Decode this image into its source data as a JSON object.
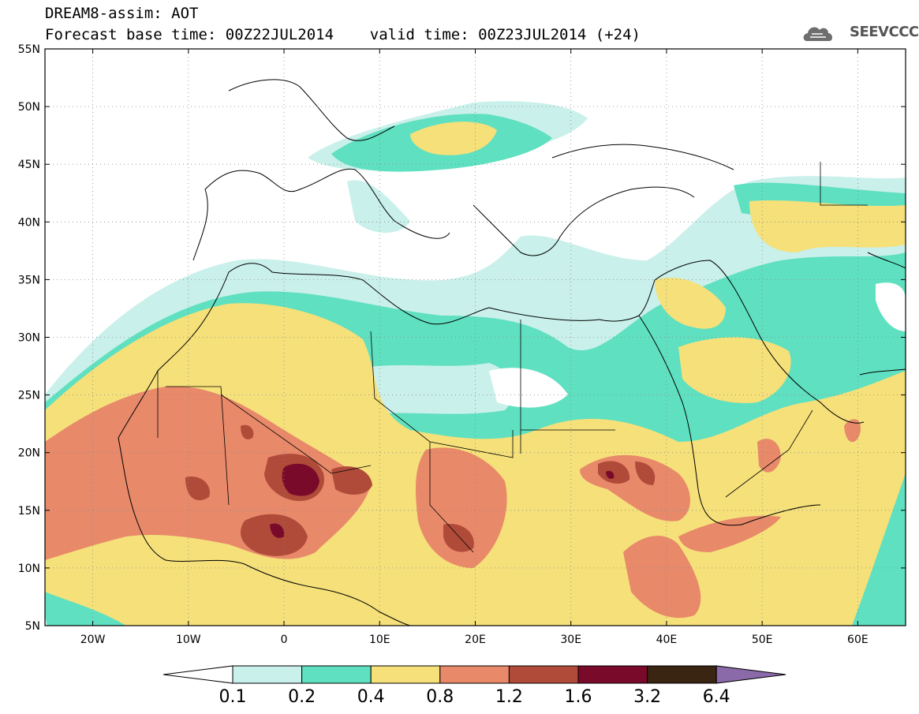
{
  "header": {
    "line1": "DREAM8-assim: AOT",
    "line2": "Forecast base time: 00Z22JUL2014    valid time: 00Z23JUL2014 (+24)"
  },
  "logo": {
    "text": "SEEVCCC",
    "icon": "cloud-logo-icon"
  },
  "map": {
    "lon_range": [
      -25,
      65
    ],
    "lat_range": [
      5,
      55
    ],
    "lat_ticks": [
      {
        "value": 55,
        "label": "55N"
      },
      {
        "value": 50,
        "label": "50N"
      },
      {
        "value": 45,
        "label": "45N"
      },
      {
        "value": 40,
        "label": "40N"
      },
      {
        "value": 35,
        "label": "35N"
      },
      {
        "value": 30,
        "label": "30N"
      },
      {
        "value": 25,
        "label": "25N"
      },
      {
        "value": 20,
        "label": "20N"
      },
      {
        "value": 15,
        "label": "15N"
      },
      {
        "value": 10,
        "label": "10N"
      },
      {
        "value": 5,
        "label": "5N"
      }
    ],
    "lon_ticks": [
      {
        "value": -20,
        "label": "20W"
      },
      {
        "value": -10,
        "label": "10W"
      },
      {
        "value": 0,
        "label": "0"
      },
      {
        "value": 10,
        "label": "10E"
      },
      {
        "value": 20,
        "label": "20E"
      },
      {
        "value": 30,
        "label": "30E"
      },
      {
        "value": 40,
        "label": "40E"
      },
      {
        "value": 50,
        "label": "50E"
      },
      {
        "value": 60,
        "label": "60E"
      }
    ]
  },
  "legend": {
    "labels": [
      "0.1",
      "0.2",
      "0.4",
      "0.8",
      "1.2",
      "1.6",
      "3.2",
      "6.4"
    ],
    "colors": [
      "#ffffff",
      "#c9f0ea",
      "#5fe0c0",
      "#f5e07a",
      "#e8896a",
      "#b04b3a",
      "#7a0a2a",
      "#3a2412",
      "#8a6aa8"
    ]
  },
  "aot_levels": {
    "l1": "#c9f0ea",
    "l2": "#5fe0c0",
    "l3": "#f5e07a",
    "l4": "#e8896a",
    "l5": "#b04b3a",
    "l6": "#7a0a2a"
  }
}
